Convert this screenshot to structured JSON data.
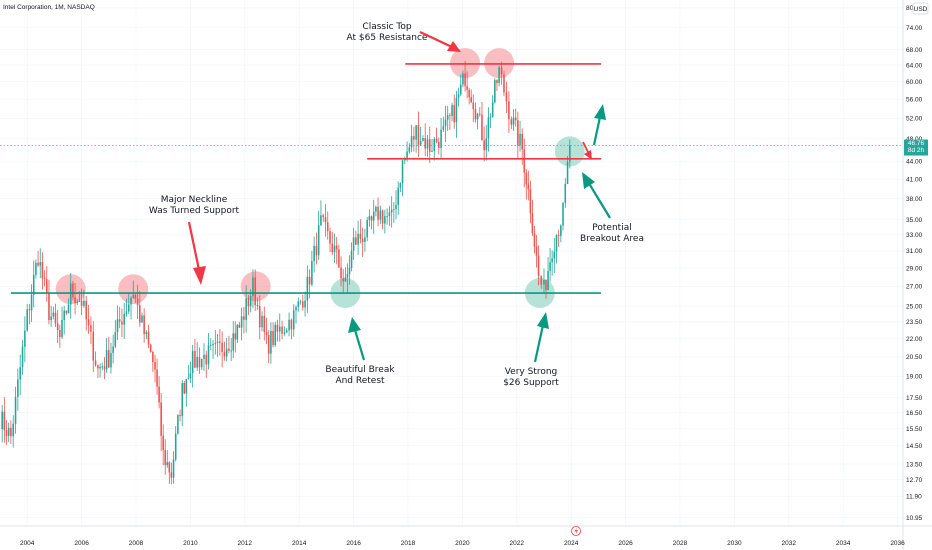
{
  "header": {
    "title": "Intel Corporation, 1M, NASDAQ",
    "currency": "USD"
  },
  "colors": {
    "up": "#26a69a",
    "down": "#ef5350",
    "neckline": "#089981",
    "resistance": "#f23645",
    "highlight_red": "#f7a7ae",
    "highlight_green": "#9fd8cb",
    "arrow_red": "#f23645",
    "arrow_green": "#089981"
  },
  "chart_data": {
    "type": "candlestick",
    "title": "Intel Corporation, 1M, NASDAQ",
    "x_axis": {
      "ticks": [
        "2004",
        "2006",
        "2008",
        "2010",
        "2012",
        "2014",
        "2016",
        "2018",
        "2020",
        "2022",
        "2024",
        "2026",
        "2028",
        "2030",
        "2032",
        "2034",
        "2036"
      ],
      "range": [
        2003.0,
        2036.2
      ]
    },
    "y_axis": {
      "scale": "log",
      "unit": "USD",
      "ticks": [
        "80.00",
        "74.00",
        "68.00",
        "64.00",
        "60.00",
        "56.00",
        "52.00",
        "48.00",
        "44.00",
        "41.00",
        "38.00",
        "35.00",
        "33.00",
        "31.00",
        "29.00",
        "27.00",
        "25.00",
        "23.50",
        "22.00",
        "20.50",
        "19.00",
        "17.50",
        "16.50",
        "15.50",
        "14.50",
        "13.50",
        "12.70",
        "11.90",
        "10.95"
      ],
      "range": [
        10.6,
        82.5
      ]
    },
    "last_price": {
      "value": 46.76,
      "label": "46.76",
      "sublabel": "8d 2h"
    },
    "levels": [
      {
        "name": "neckline-support",
        "price": 26.3,
        "from": 2003.4,
        "to": 2025.1
      },
      {
        "name": "resistance-65",
        "price": 64.3,
        "from": 2017.9,
        "to": 2025.1
      },
      {
        "name": "breakout-level",
        "price": 44.4,
        "from": 2016.5,
        "to": 2025.1
      }
    ],
    "highlights": [
      {
        "kind": "red",
        "x": 2005.6,
        "price": 26.7
      },
      {
        "kind": "red",
        "x": 2007.9,
        "price": 26.7
      },
      {
        "kind": "red",
        "x": 2012.4,
        "price": 27.0
      },
      {
        "kind": "green",
        "x": 2015.7,
        "price": 26.3
      },
      {
        "kind": "red",
        "x": 2020.1,
        "price": 64.5
      },
      {
        "kind": "red",
        "x": 2021.35,
        "price": 64.5
      },
      {
        "kind": "green",
        "x": 2022.85,
        "price": 26.3
      },
      {
        "kind": "green",
        "x": 2023.95,
        "price": 45.7
      }
    ],
    "annotations": [
      {
        "id": "classic-top",
        "lines": [
          "Classic Top",
          "At $65 Resistance"
        ]
      },
      {
        "id": "major-neckline",
        "lines": [
          "Major Neckline",
          "Was Turned Support"
        ]
      },
      {
        "id": "beautiful-break",
        "lines": [
          "Beautiful Break",
          "And Retest"
        ]
      },
      {
        "id": "very-strong",
        "lines": [
          "Very Strong",
          "$26 Support"
        ]
      },
      {
        "id": "potential-breakout",
        "lines": [
          "Potential",
          "Breakout Area"
        ]
      }
    ],
    "anchors": [
      [
        2003.0,
        16.2
      ],
      [
        2003.4,
        15.0
      ],
      [
        2004.0,
        24.0
      ],
      [
        2004.4,
        30.5
      ],
      [
        2004.8,
        24.5
      ],
      [
        2005.2,
        22.0
      ],
      [
        2005.6,
        26.5
      ],
      [
        2006.0,
        25.5
      ],
      [
        2006.6,
        19.5
      ],
      [
        2007.0,
        20.5
      ],
      [
        2007.4,
        23.5
      ],
      [
        2007.9,
        26.5
      ],
      [
        2008.3,
        22.5
      ],
      [
        2008.7,
        19.5
      ],
      [
        2009.0,
        14.0
      ],
      [
        2009.3,
        13.0
      ],
      [
        2009.7,
        18.0
      ],
      [
        2010.0,
        20.0
      ],
      [
        2010.5,
        20.5
      ],
      [
        2011.0,
        21.0
      ],
      [
        2011.5,
        22.0
      ],
      [
        2011.8,
        23.0
      ],
      [
        2012.3,
        27.0
      ],
      [
        2012.8,
        21.5
      ],
      [
        2013.2,
        22.5
      ],
      [
        2013.8,
        24.0
      ],
      [
        2014.3,
        27.0
      ],
      [
        2014.8,
        34.5
      ],
      [
        2015.3,
        31.0
      ],
      [
        2015.7,
        27.0
      ],
      [
        2016.0,
        32.0
      ],
      [
        2016.5,
        33.5
      ],
      [
        2016.9,
        36.0
      ],
      [
        2017.4,
        35.0
      ],
      [
        2017.8,
        43.5
      ],
      [
        2018.3,
        49.5
      ],
      [
        2018.8,
        46.5
      ],
      [
        2019.3,
        49.0
      ],
      [
        2019.7,
        53.5
      ],
      [
        2020.1,
        61.5
      ],
      [
        2020.4,
        56.0
      ],
      [
        2020.8,
        47.5
      ],
      [
        2021.35,
        62.5
      ],
      [
        2021.8,
        52.0
      ],
      [
        2022.2,
        46.0
      ],
      [
        2022.5,
        37.0
      ],
      [
        2022.8,
        28.0
      ],
      [
        2023.0,
        26.5
      ],
      [
        2023.3,
        31.5
      ],
      [
        2023.7,
        36.0
      ],
      [
        2023.95,
        46.76
      ]
    ]
  }
}
